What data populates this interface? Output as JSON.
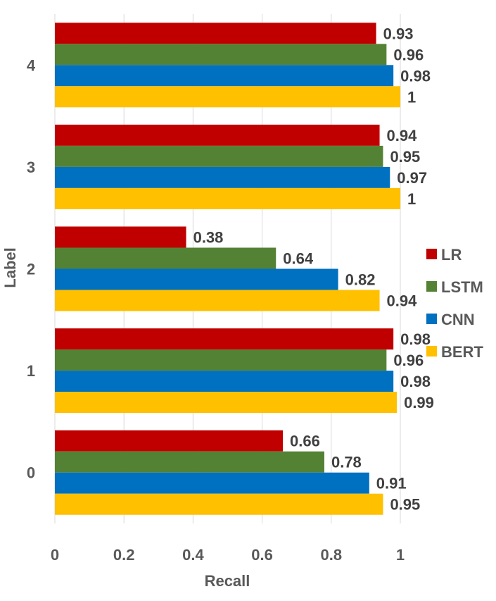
{
  "chart_data": {
    "type": "bar",
    "orientation": "horizontal",
    "categories": [
      "0",
      "1",
      "2",
      "3",
      "4"
    ],
    "series": [
      {
        "name": "LR",
        "color": "#c00000",
        "values": [
          0.66,
          0.98,
          0.38,
          0.94,
          0.93
        ]
      },
      {
        "name": "LSTM",
        "color": "#548235",
        "values": [
          0.78,
          0.96,
          0.64,
          0.95,
          0.96
        ]
      },
      {
        "name": "CNN",
        "color": "#0070c0",
        "values": [
          0.91,
          0.98,
          0.82,
          0.97,
          0.98
        ]
      },
      {
        "name": "BERT",
        "color": "#ffc000",
        "values": [
          0.95,
          0.99,
          0.94,
          1,
          1
        ]
      }
    ],
    "data_labels": [
      [
        "0.66",
        "0.98",
        "0.38",
        "0.94",
        "0.93"
      ],
      [
        "0.78",
        "0.96",
        "0.64",
        "0.95",
        "0.96"
      ],
      [
        "0.91",
        "0.98",
        "0.82",
        "0.97",
        "0.98"
      ],
      [
        "0.95",
        "0.99",
        "0.94",
        "1",
        "1"
      ]
    ],
    "xlabel": "Recall",
    "ylabel": "Label",
    "xlim": [
      0,
      1
    ],
    "xticks": [
      "0",
      "0.2",
      "0.4",
      "0.6",
      "0.8",
      "1"
    ],
    "grid": true,
    "legend_position": "right"
  }
}
